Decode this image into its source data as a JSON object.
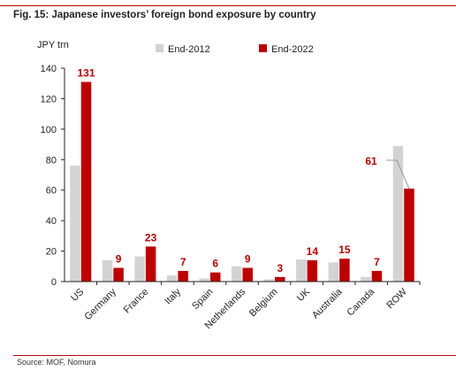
{
  "figure": {
    "title": "Fig. 15: Japanese investors’ foreign bond exposure by country",
    "source": "Source: MOF, Nomura"
  },
  "chart_data": {
    "type": "bar",
    "ylabel": "JPY trn",
    "ylim": [
      0,
      140
    ],
    "yticks": [
      0,
      20,
      40,
      60,
      80,
      100,
      120,
      140
    ],
    "grid": false,
    "legend_position": "top",
    "categories": [
      "US",
      "Germany",
      "France",
      "Italy",
      "Spain",
      "Netherlands",
      "Belgium",
      "UK",
      "Australia",
      "Canada",
      "ROW"
    ],
    "series": [
      {
        "name": "End-2012",
        "color": "#d3d3d3",
        "values": [
          76,
          14,
          16.5,
          4,
          2,
          10,
          1.5,
          14.5,
          12.5,
          3,
          89
        ]
      },
      {
        "name": "End-2022",
        "color": "#c00000",
        "values": [
          131,
          9,
          23,
          7,
          6,
          9,
          3,
          14,
          15,
          7,
          61
        ],
        "data_labels": [
          "131",
          "9",
          "23",
          "7",
          "6",
          "9",
          "3",
          "14",
          "15",
          "7",
          "61"
        ]
      }
    ]
  }
}
